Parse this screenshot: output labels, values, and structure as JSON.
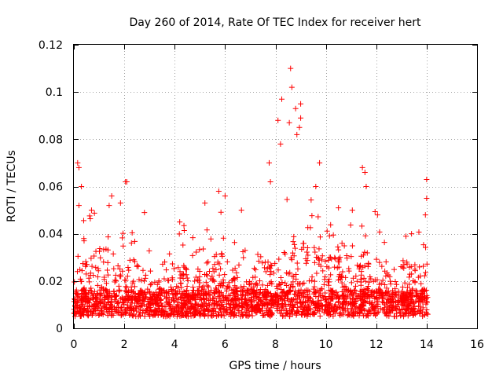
{
  "chart_data": {
    "type": "scatter",
    "title": "Day 260 of 2014, Rate Of TEC Index for receiver hert",
    "xlabel": "GPS time / hours",
    "ylabel": "ROTI / TECUs",
    "xlim": [
      0,
      16
    ],
    "ylim": [
      0,
      0.12
    ],
    "xticks": [
      "0",
      "2",
      "4",
      "6",
      "8",
      "10",
      "12",
      "14",
      "16"
    ],
    "yticks": [
      "0",
      "0.02",
      "0.04",
      "0.06",
      "0.08",
      "0.1",
      "0.12"
    ],
    "xtick_values": [
      0,
      2,
      4,
      6,
      8,
      10,
      12,
      14,
      16
    ],
    "ytick_values": [
      0,
      0.02,
      0.04,
      0.06,
      0.08,
      0.1,
      0.12
    ],
    "grid": true,
    "marker": "+",
    "marker_color": "#ff0000",
    "series": [
      {
        "name": "ROTI",
        "x_range": [
          0,
          14.05
        ],
        "baseline_band": [
          0.005,
          0.02
        ],
        "notable_points": [
          {
            "x": 0.15,
            "y": 0.07
          },
          {
            "x": 0.2,
            "y": 0.068
          },
          {
            "x": 0.3,
            "y": 0.06
          },
          {
            "x": 0.2,
            "y": 0.052
          },
          {
            "x": 0.7,
            "y": 0.05
          },
          {
            "x": 1.4,
            "y": 0.052
          },
          {
            "x": 1.5,
            "y": 0.056
          },
          {
            "x": 2.05,
            "y": 0.062
          },
          {
            "x": 2.1,
            "y": 0.062
          },
          {
            "x": 1.85,
            "y": 0.053
          },
          {
            "x": 2.8,
            "y": 0.049
          },
          {
            "x": 4.2,
            "y": 0.045
          },
          {
            "x": 5.2,
            "y": 0.053
          },
          {
            "x": 5.75,
            "y": 0.058
          },
          {
            "x": 6.0,
            "y": 0.056
          },
          {
            "x": 6.65,
            "y": 0.05
          },
          {
            "x": 7.75,
            "y": 0.07
          },
          {
            "x": 7.8,
            "y": 0.062
          },
          {
            "x": 8.1,
            "y": 0.088
          },
          {
            "x": 8.25,
            "y": 0.097
          },
          {
            "x": 8.6,
            "y": 0.11
          },
          {
            "x": 8.65,
            "y": 0.102
          },
          {
            "x": 8.55,
            "y": 0.087
          },
          {
            "x": 8.8,
            "y": 0.093
          },
          {
            "x": 9.0,
            "y": 0.095
          },
          {
            "x": 9.0,
            "y": 0.089
          },
          {
            "x": 8.95,
            "y": 0.085
          },
          {
            "x": 8.2,
            "y": 0.078
          },
          {
            "x": 8.85,
            "y": 0.082
          },
          {
            "x": 9.75,
            "y": 0.07
          },
          {
            "x": 9.6,
            "y": 0.06
          },
          {
            "x": 10.5,
            "y": 0.051
          },
          {
            "x": 11.05,
            "y": 0.05
          },
          {
            "x": 11.45,
            "y": 0.068
          },
          {
            "x": 11.55,
            "y": 0.066
          },
          {
            "x": 11.6,
            "y": 0.06
          },
          {
            "x": 12.05,
            "y": 0.048
          },
          {
            "x": 13.4,
            "y": 0.04
          },
          {
            "x": 14.0,
            "y": 0.063
          },
          {
            "x": 14.0,
            "y": 0.055
          },
          {
            "x": 13.95,
            "y": 0.048
          }
        ]
      }
    ]
  }
}
